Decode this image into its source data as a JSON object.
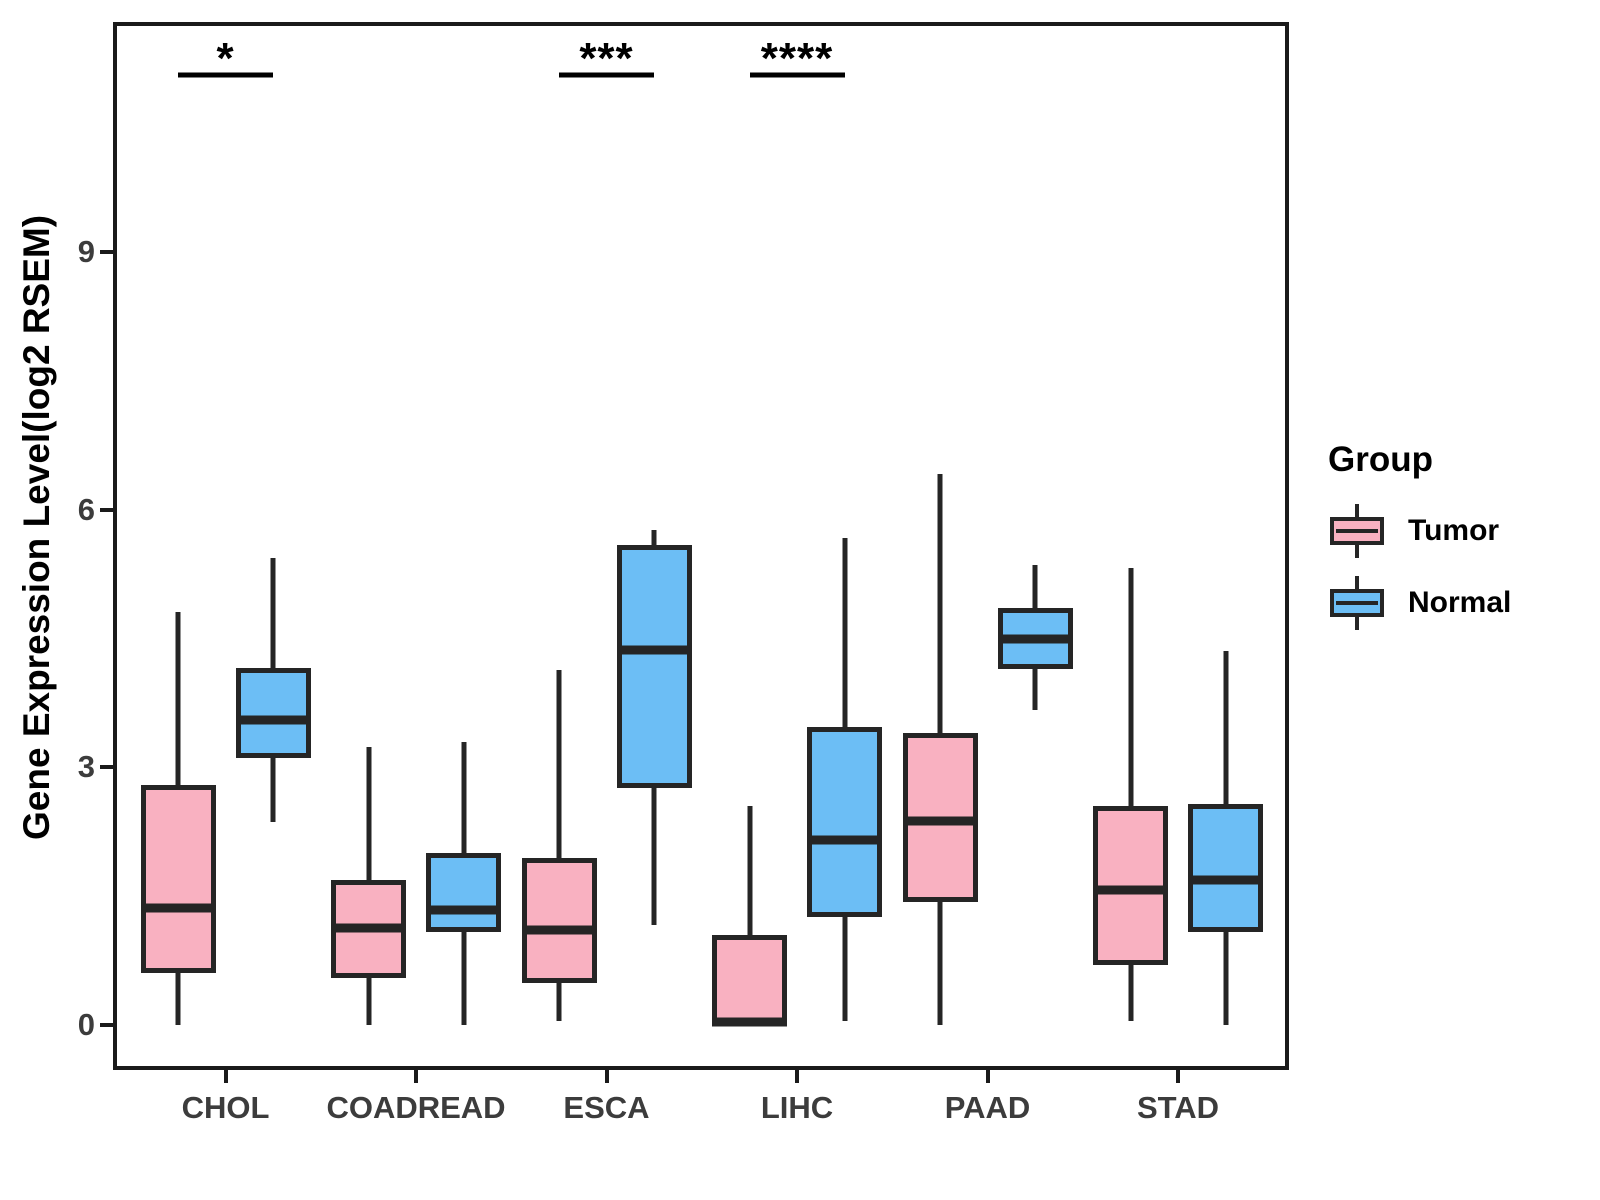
{
  "chart_data": {
    "type": "boxplot",
    "title": "",
    "xlabel": "",
    "ylabel": "Gene Expression Level(log2 RSEM)",
    "yticks": [
      0,
      3,
      6,
      9
    ],
    "ylim": [
      -0.5,
      11.7
    ],
    "grid": false,
    "legend_position": "right",
    "categories": [
      "CHOL",
      "COADREAD",
      "ESCA",
      "LIHC",
      "PAAD",
      "STAD"
    ],
    "groups": [
      {
        "name": "Tumor",
        "color": "#F9B1C1"
      },
      {
        "name": "Normal",
        "color": "#6CBEF5"
      }
    ],
    "series": [
      {
        "name": "Tumor",
        "color": "#F9B1C1",
        "boxes": [
          {
            "category": "CHOL",
            "low": 0.0,
            "q1": 0.61,
            "median": 1.36,
            "q3": 2.79,
            "high": 4.81
          },
          {
            "category": "COADREAD",
            "low": 0.0,
            "q1": 0.55,
            "median": 1.13,
            "q3": 1.69,
            "high": 3.24
          },
          {
            "category": "ESCA",
            "low": 0.05,
            "q1": 0.49,
            "median": 1.11,
            "q3": 1.94,
            "high": 4.13
          },
          {
            "category": "LIHC",
            "low": 0.0,
            "q1": 0.0,
            "median": 0.03,
            "q3": 1.05,
            "high": 2.55
          },
          {
            "category": "PAAD",
            "low": 0.0,
            "q1": 1.43,
            "median": 2.37,
            "q3": 3.4,
            "high": 6.42
          },
          {
            "category": "STAD",
            "low": 0.05,
            "q1": 0.7,
            "median": 1.57,
            "q3": 2.55,
            "high": 5.32
          }
        ]
      },
      {
        "name": "Normal",
        "color": "#6CBEF5",
        "boxes": [
          {
            "category": "CHOL",
            "low": 2.36,
            "q1": 3.11,
            "median": 3.55,
            "q3": 4.16,
            "high": 5.44
          },
          {
            "category": "COADREAD",
            "low": 0.0,
            "q1": 1.08,
            "median": 1.34,
            "q3": 2.0,
            "high": 3.3
          },
          {
            "category": "ESCA",
            "low": 1.16,
            "q1": 2.76,
            "median": 4.37,
            "q3": 5.59,
            "high": 5.76
          },
          {
            "category": "LIHC",
            "low": 0.05,
            "q1": 1.26,
            "median": 2.15,
            "q3": 3.47,
            "high": 5.67
          },
          {
            "category": "PAAD",
            "low": 3.67,
            "q1": 4.15,
            "median": 4.5,
            "q3": 4.85,
            "high": 5.36
          },
          {
            "category": "STAD",
            "low": 0.0,
            "q1": 1.08,
            "median": 1.69,
            "q3": 2.57,
            "high": 4.35
          }
        ]
      }
    ],
    "significance": [
      {
        "category": "CHOL",
        "label": "*"
      },
      {
        "category": "ESCA",
        "label": "***"
      },
      {
        "category": "LIHC",
        "label": "****"
      }
    ],
    "legend": {
      "title": "Group",
      "entries": [
        "Tumor",
        "Normal"
      ]
    }
  }
}
